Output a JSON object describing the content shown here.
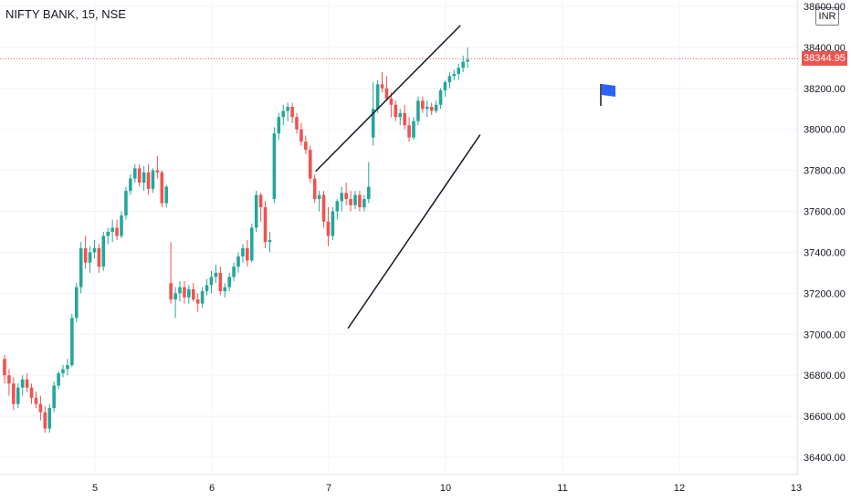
{
  "header": {
    "title": "NIFTY BANK, 15, NSE",
    "currency": "INR"
  },
  "last_price_label": "38344.95",
  "colors": {
    "up": "#26a69a",
    "down": "#ef5350",
    "line": "#131722",
    "flag": "#2962ff"
  },
  "chart_data": {
    "type": "candlestick",
    "title": "NIFTY BANK, 15, NSE",
    "y_ticks": [
      "36400.00",
      "36600.00",
      "36800.00",
      "37000.00",
      "37200.00",
      "37400.00",
      "37600.00",
      "37800.00",
      "38000.00",
      "38200.00",
      "38400.00",
      "38600.00"
    ],
    "x_ticks": [
      "5",
      "6",
      "7",
      "10",
      "11",
      "12",
      "13"
    ],
    "ylim": [
      36300,
      38650
    ],
    "last_price": 38344.95,
    "candles": [
      [
        36880,
        36900,
        36760,
        36800
      ],
      [
        36800,
        36830,
        36700,
        36760
      ],
      [
        36760,
        36790,
        36630,
        36660
      ],
      [
        36660,
        36760,
        36640,
        36740
      ],
      [
        36740,
        36800,
        36700,
        36780
      ],
      [
        36780,
        36810,
        36720,
        36740
      ],
      [
        36740,
        36760,
        36660,
        36690
      ],
      [
        36690,
        36720,
        36640,
        36660
      ],
      [
        36660,
        36700,
        36580,
        36620
      ],
      [
        36620,
        36650,
        36520,
        36540
      ],
      [
        36540,
        36660,
        36520,
        36640
      ],
      [
        36640,
        36770,
        36620,
        36750
      ],
      [
        36750,
        36820,
        36730,
        36810
      ],
      [
        36810,
        36850,
        36790,
        36830
      ],
      [
        36830,
        36880,
        36800,
        36850
      ],
      [
        36850,
        37100,
        36840,
        37080
      ],
      [
        37080,
        37250,
        37060,
        37230
      ],
      [
        37230,
        37450,
        37200,
        37420
      ],
      [
        37420,
        37480,
        37320,
        37350
      ],
      [
        37350,
        37430,
        37300,
        37400
      ],
      [
        37400,
        37460,
        37370,
        37420
      ],
      [
        37420,
        37440,
        37300,
        37330
      ],
      [
        37330,
        37500,
        37310,
        37480
      ],
      [
        37480,
        37520,
        37440,
        37500
      ],
      [
        37500,
        37560,
        37450,
        37520
      ],
      [
        37520,
        37560,
        37460,
        37480
      ],
      [
        37480,
        37600,
        37470,
        37580
      ],
      [
        37580,
        37720,
        37560,
        37700
      ],
      [
        37700,
        37780,
        37680,
        37760
      ],
      [
        37760,
        37830,
        37740,
        37810
      ],
      [
        37810,
        37830,
        37720,
        37740
      ],
      [
        37740,
        37820,
        37700,
        37790
      ],
      [
        37790,
        37830,
        37680,
        37710
      ],
      [
        37710,
        37810,
        37690,
        37800
      ],
      [
        37800,
        37870,
        37760,
        37790
      ],
      [
        37790,
        37800,
        37620,
        37640
      ],
      [
        37640,
        37730,
        37620,
        37720
      ],
      [
        37250,
        37450,
        37150,
        37170
      ],
      [
        37170,
        37230,
        37080,
        37200
      ],
      [
        37200,
        37260,
        37160,
        37230
      ],
      [
        37230,
        37260,
        37150,
        37180
      ],
      [
        37180,
        37240,
        37150,
        37220
      ],
      [
        37220,
        37250,
        37160,
        37170
      ],
      [
        37170,
        37200,
        37110,
        37150
      ],
      [
        37150,
        37230,
        37130,
        37210
      ],
      [
        37210,
        37270,
        37190,
        37240
      ],
      [
        37240,
        37310,
        37200,
        37280
      ],
      [
        37280,
        37340,
        37250,
        37300
      ],
      [
        37300,
        37330,
        37190,
        37210
      ],
      [
        37210,
        37250,
        37180,
        37230
      ],
      [
        37230,
        37300,
        37210,
        37280
      ],
      [
        37280,
        37350,
        37260,
        37330
      ],
      [
        37330,
        37400,
        37300,
        37380
      ],
      [
        37380,
        37440,
        37350,
        37420
      ],
      [
        37420,
        37460,
        37330,
        37360
      ],
      [
        37360,
        37540,
        37350,
        37520
      ],
      [
        37520,
        37700,
        37500,
        37680
      ],
      [
        37680,
        37690,
        37550,
        37620
      ],
      [
        37620,
        37650,
        37420,
        37450
      ],
      [
        37450,
        37500,
        37400,
        37460
      ],
      [
        37660,
        38010,
        37640,
        37980
      ],
      [
        37980,
        38080,
        37950,
        38060
      ],
      [
        38060,
        38120,
        38020,
        38090
      ],
      [
        38090,
        38130,
        38040,
        38110
      ],
      [
        38110,
        38130,
        38030,
        38060
      ],
      [
        38060,
        38080,
        37980,
        38000
      ],
      [
        38000,
        38030,
        37920,
        37940
      ],
      [
        37940,
        37970,
        37880,
        37900
      ],
      [
        37900,
        37920,
        37740,
        37760
      ],
      [
        37760,
        37780,
        37640,
        37660
      ],
      [
        37660,
        37700,
        37600,
        37680
      ],
      [
        37680,
        37700,
        37520,
        37550
      ],
      [
        37550,
        37620,
        37430,
        37480
      ],
      [
        37480,
        37620,
        37460,
        37600
      ],
      [
        37600,
        37660,
        37560,
        37650
      ],
      [
        37650,
        37720,
        37600,
        37690
      ],
      [
        37690,
        37740,
        37630,
        37660
      ],
      [
        37660,
        37700,
        37600,
        37630
      ],
      [
        37630,
        37700,
        37610,
        37680
      ],
      [
        37680,
        37700,
        37600,
        37620
      ],
      [
        37620,
        37680,
        37600,
        37660
      ],
      [
        37660,
        37840,
        37640,
        37720
      ],
      [
        37960,
        38230,
        37920,
        38100
      ],
      [
        38100,
        38240,
        38080,
        38220
      ],
      [
        38220,
        38280,
        38180,
        38200
      ],
      [
        38200,
        38260,
        38140,
        38150
      ],
      [
        38150,
        38180,
        38060,
        38120
      ],
      [
        38120,
        38140,
        38040,
        38060
      ],
      [
        38060,
        38100,
        38020,
        38080
      ],
      [
        38080,
        38120,
        38000,
        38020
      ],
      [
        38020,
        38060,
        37940,
        37960
      ],
      [
        37960,
        38060,
        37950,
        38040
      ],
      [
        38040,
        38160,
        38020,
        38140
      ],
      [
        38140,
        38160,
        38080,
        38100
      ],
      [
        38100,
        38140,
        38060,
        38110
      ],
      [
        38110,
        38130,
        38070,
        38090
      ],
      [
        38090,
        38140,
        38080,
        38120
      ],
      [
        38120,
        38200,
        38100,
        38190
      ],
      [
        38190,
        38240,
        38160,
        38230
      ],
      [
        38230,
        38280,
        38200,
        38260
      ],
      [
        38260,
        38290,
        38240,
        38270
      ],
      [
        38270,
        38320,
        38240,
        38300
      ],
      [
        38300,
        38360,
        38280,
        38330
      ],
      [
        38330,
        38400,
        38300,
        38340
      ]
    ],
    "trendlines": [
      {
        "name": "upper-trendline",
        "from": [
          -33.6,
          37795
        ],
        "to": [
          -1.4,
          38507
        ]
      },
      {
        "name": "lower-trendline",
        "from": [
          -26.4,
          37029
        ],
        "to": [
          3.0,
          37974
        ]
      }
    ]
  }
}
